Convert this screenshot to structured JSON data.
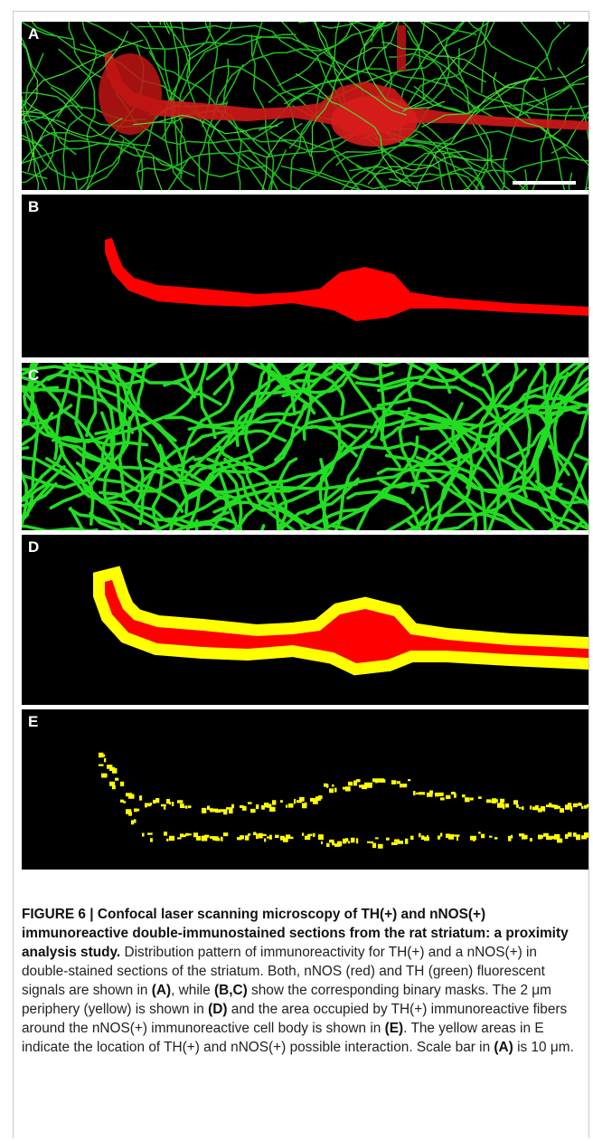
{
  "figure": {
    "panels": [
      {
        "id": "A",
        "label": "A",
        "kind": "confocal-merge"
      },
      {
        "id": "B",
        "label": "B",
        "kind": "red-binary-mask"
      },
      {
        "id": "C",
        "label": "C",
        "kind": "green-binary-mask"
      },
      {
        "id": "D",
        "label": "D",
        "kind": "periphery-mask"
      },
      {
        "id": "E",
        "label": "E",
        "kind": "overlap-mask"
      }
    ],
    "colors": {
      "red": "#ff0000",
      "green": "#00e000",
      "yellow": "#ffff00",
      "background": "#000000"
    }
  },
  "caption": {
    "title": "FIGURE 6 | Confocal laser scanning microscopy of TH(+) and nNOS(+) immunoreactive double-immunostained sections from the rat striatum: a proximity analysis study.",
    "t1": " Distribution pattern of immunoreactivity for TH(+) and a nNOS(+) in double-stained sections of the striatum. Both, nNOS (red) and TH (green) fluorescent signals are shown in ",
    "b1": "(A)",
    "t2": ", while ",
    "b2": "(B,C)",
    "t3": " show the corresponding binary masks. The 2 μm periphery (yellow) is shown in ",
    "b3": "(D)",
    "t4": " and the area occupied by TH(+) immunoreactive fibers around the nNOS(+) immunoreactive cell body is shown in ",
    "b4": "(E)",
    "t5": ". The yellow areas in E indicate the location of TH(+) and nNOS(+) possible interaction. Scale bar in ",
    "b5": "(A)",
    "t6": " is 10 μm."
  }
}
